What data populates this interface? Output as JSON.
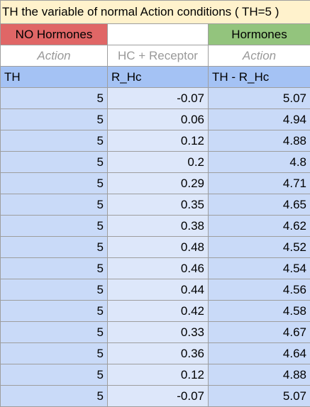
{
  "title": "TH the variable of normal Action conditions ( TH=5 )",
  "groups": {
    "left": "NO Hormones",
    "middle": "",
    "right": "Hormones"
  },
  "subheaders": {
    "left": "Action",
    "middle": "HC + Receptor",
    "right": "Action"
  },
  "columns": {
    "th": "TH",
    "r_hc": "R_Hc",
    "diff": "TH - R_Hc"
  },
  "colors": {
    "title_bg": "#fff2cc",
    "no_hormones_bg": "#e06666",
    "hormones_bg": "#93c47d",
    "column_header_bg": "#a4c2f4",
    "data_bg": "#c9daf8"
  },
  "rows": [
    {
      "th": "5",
      "r_hc": "-0.07",
      "diff": "5.07"
    },
    {
      "th": "5",
      "r_hc": "0.06",
      "diff": "4.94"
    },
    {
      "th": "5",
      "r_hc": "0.12",
      "diff": "4.88"
    },
    {
      "th": "5",
      "r_hc": "0.2",
      "diff": "4.8"
    },
    {
      "th": "5",
      "r_hc": "0.29",
      "diff": "4.71"
    },
    {
      "th": "5",
      "r_hc": "0.35",
      "diff": "4.65"
    },
    {
      "th": "5",
      "r_hc": "0.38",
      "diff": "4.62"
    },
    {
      "th": "5",
      "r_hc": "0.48",
      "diff": "4.52"
    },
    {
      "th": "5",
      "r_hc": "0.46",
      "diff": "4.54"
    },
    {
      "th": "5",
      "r_hc": "0.44",
      "diff": "4.56"
    },
    {
      "th": "5",
      "r_hc": "0.42",
      "diff": "4.58"
    },
    {
      "th": "5",
      "r_hc": "0.33",
      "diff": "4.67"
    },
    {
      "th": "5",
      "r_hc": "0.36",
      "diff": "4.64"
    },
    {
      "th": "5",
      "r_hc": "0.12",
      "diff": "4.88"
    },
    {
      "th": "5",
      "r_hc": "-0.07",
      "diff": "5.07"
    }
  ]
}
